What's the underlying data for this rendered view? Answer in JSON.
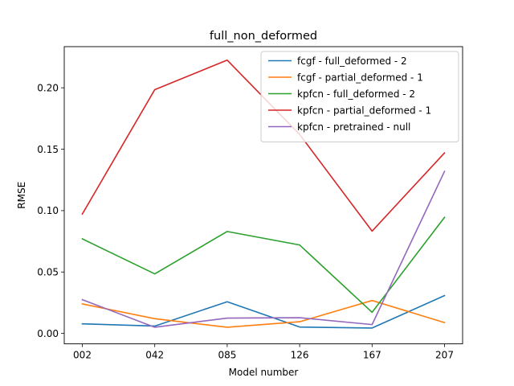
{
  "chart_data": {
    "type": "line",
    "title": "full_non_deformed",
    "xlabel": "Model number",
    "ylabel": "RMSE",
    "categories": [
      "002",
      "042",
      "085",
      "126",
      "167",
      "207"
    ],
    "ylim": [
      -0.0085,
      0.2335
    ],
    "yticks": [
      0.0,
      0.05,
      0.1,
      0.15,
      0.2
    ],
    "ytick_labels": [
      "0.00",
      "0.05",
      "0.10",
      "0.15",
      "0.20"
    ],
    "grid": false,
    "legend_position": "top-right",
    "series": [
      {
        "name": "fcgf - full_deformed - 2",
        "color": "#1f77b4",
        "values": [
          0.0078,
          0.006,
          0.0258,
          0.0052,
          0.0044,
          0.0308
        ]
      },
      {
        "name": "fcgf - partial_deformed - 1",
        "color": "#ff7f0e",
        "values": [
          0.024,
          0.012,
          0.005,
          0.0095,
          0.0268,
          0.0088
        ]
      },
      {
        "name": "kpfcn - full_deformed - 2",
        "color": "#2ca02c",
        "values": [
          0.077,
          0.0485,
          0.083,
          0.072,
          0.0172,
          0.0945
        ]
      },
      {
        "name": "kpfcn - partial_deformed - 1",
        "color": "#d62728",
        "values": [
          0.0972,
          0.1985,
          0.2225,
          0.162,
          0.0833,
          0.147
        ]
      },
      {
        "name": "kpfcn - pretrained - null",
        "color": "#9467bd",
        "values": [
          0.0275,
          0.005,
          0.0125,
          0.0128,
          0.0072,
          0.132
        ]
      }
    ]
  }
}
